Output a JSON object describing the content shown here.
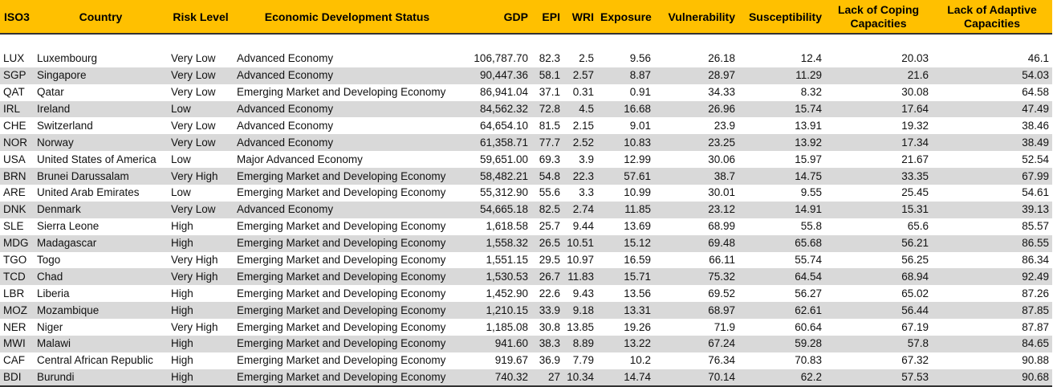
{
  "columns": [
    "ISO3",
    "Country",
    "Risk Level",
    "Economic Development Status",
    "GDP",
    "EPI",
    "WRI",
    "Exposure",
    "Vulnerability",
    "Susceptibility",
    "Lack of Coping Capacities",
    "Lack of Adaptive Capacities"
  ],
  "rows": [
    [
      "LUX",
      "Luxembourg",
      "Very Low",
      "Advanced Economy",
      "106,787.70",
      "82.3",
      "2.5",
      "9.56",
      "26.18",
      "12.4",
      "20.03",
      "46.1"
    ],
    [
      "SGP",
      "Singapore",
      "Very Low",
      "Advanced Economy",
      "90,447.36",
      "58.1",
      "2.57",
      "8.87",
      "28.97",
      "11.29",
      "21.6",
      "54.03"
    ],
    [
      "QAT",
      "Qatar",
      "Very Low",
      "Emerging Market and Developing Economy",
      "86,941.04",
      "37.1",
      "0.31",
      "0.91",
      "34.33",
      "8.32",
      "30.08",
      "64.58"
    ],
    [
      "IRL",
      "Ireland",
      "Low",
      "Advanced Economy",
      "84,562.32",
      "72.8",
      "4.5",
      "16.68",
      "26.96",
      "15.74",
      "17.64",
      "47.49"
    ],
    [
      "CHE",
      "Switzerland",
      "Very Low",
      "Advanced Economy",
      "64,654.10",
      "81.5",
      "2.15",
      "9.01",
      "23.9",
      "13.91",
      "19.32",
      "38.46"
    ],
    [
      "NOR",
      "Norway",
      "Very Low",
      "Advanced Economy",
      "61,358.71",
      "77.7",
      "2.52",
      "10.83",
      "23.25",
      "13.92",
      "17.34",
      "38.49"
    ],
    [
      "USA",
      "United States of America",
      "Low",
      "Major Advanced Economy",
      "59,651.00",
      "69.3",
      "3.9",
      "12.99",
      "30.06",
      "15.97",
      "21.67",
      "52.54"
    ],
    [
      "BRN",
      "Brunei Darussalam",
      "Very High",
      "Emerging Market and Developing Economy",
      "58,482.21",
      "54.8",
      "22.3",
      "57.61",
      "38.7",
      "14.75",
      "33.35",
      "67.99"
    ],
    [
      "ARE",
      "United Arab Emirates",
      "Low",
      "Emerging Market and Developing Economy",
      "55,312.90",
      "55.6",
      "3.3",
      "10.99",
      "30.01",
      "9.55",
      "25.45",
      "54.61"
    ],
    [
      "DNK",
      "Denmark",
      "Very Low",
      "Advanced Economy",
      "54,665.18",
      "82.5",
      "2.74",
      "11.85",
      "23.12",
      "14.91",
      "15.31",
      "39.13"
    ],
    [
      "SLE",
      "Sierra Leone",
      "High",
      "Emerging Market and Developing Economy",
      "1,618.58",
      "25.7",
      "9.44",
      "13.69",
      "68.99",
      "55.8",
      "65.6",
      "85.57"
    ],
    [
      "MDG",
      "Madagascar",
      "High",
      "Emerging Market and Developing Economy",
      "1,558.32",
      "26.5",
      "10.51",
      "15.12",
      "69.48",
      "65.68",
      "56.21",
      "86.55"
    ],
    [
      "TGO",
      "Togo",
      "Very High",
      "Emerging Market and Developing Economy",
      "1,551.15",
      "29.5",
      "10.97",
      "16.59",
      "66.11",
      "55.74",
      "56.25",
      "86.34"
    ],
    [
      "TCD",
      "Chad",
      "Very High",
      "Emerging Market and Developing Economy",
      "1,530.53",
      "26.7",
      "11.83",
      "15.71",
      "75.32",
      "64.54",
      "68.94",
      "92.49"
    ],
    [
      "LBR",
      "Liberia",
      "High",
      "Emerging Market and Developing Economy",
      "1,452.90",
      "22.6",
      "9.43",
      "13.56",
      "69.52",
      "56.27",
      "65.02",
      "87.26"
    ],
    [
      "MOZ",
      "Mozambique",
      "High",
      "Emerging Market and Developing Economy",
      "1,210.15",
      "33.9",
      "9.18",
      "13.31",
      "68.97",
      "62.61",
      "56.44",
      "87.85"
    ],
    [
      "NER",
      "Niger",
      "Very High",
      "Emerging Market and Developing Economy",
      "1,185.08",
      "30.8",
      "13.85",
      "19.26",
      "71.9",
      "60.64",
      "67.19",
      "87.87"
    ],
    [
      "MWI",
      "Malawi",
      "High",
      "Emerging Market and Developing Economy",
      "941.60",
      "38.3",
      "8.89",
      "13.22",
      "67.24",
      "59.28",
      "57.8",
      "84.65"
    ],
    [
      "CAF",
      "Central African Republic",
      "High",
      "Emerging Market and Developing Economy",
      "919.67",
      "36.9",
      "7.79",
      "10.2",
      "76.34",
      "70.83",
      "67.32",
      "90.88"
    ],
    [
      "BDI",
      "Burundi",
      "High",
      "Emerging Market and Developing Economy",
      "740.32",
      "27",
      "10.34",
      "14.74",
      "70.14",
      "62.2",
      "57.53",
      "90.68"
    ]
  ],
  "colors": {
    "header_background": "#ffc000",
    "stripe_background": "#d9d9d9"
  }
}
